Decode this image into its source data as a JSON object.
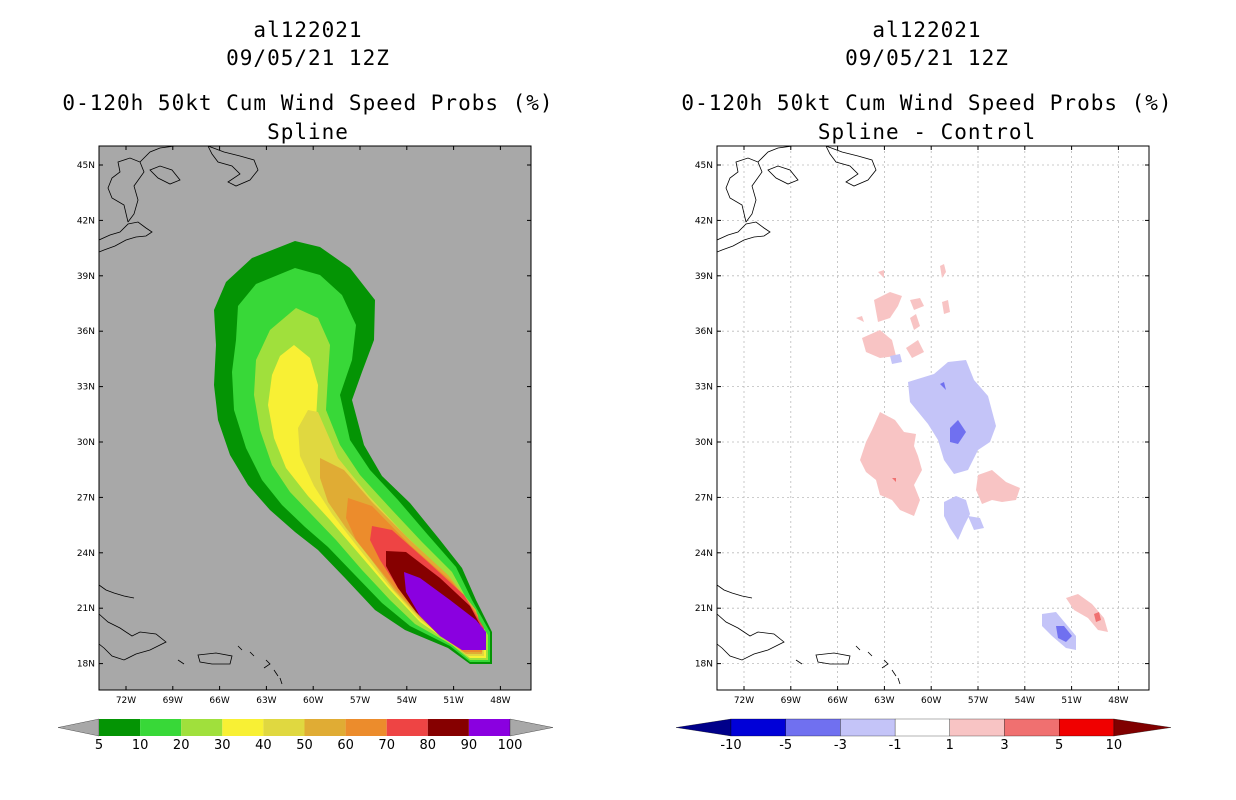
{
  "panels": [
    {
      "storm_id": "al122021",
      "datetime": "09/05/21 12Z",
      "product": "0-120h 50kt Cum Wind Speed Probs (%)",
      "subtitle": "Spline",
      "background_color": "#a8a8a8",
      "colorbar": {
        "labels": [
          "5",
          "10",
          "20",
          "30",
          "40",
          "50",
          "60",
          "70",
          "80",
          "90",
          "100"
        ],
        "colors": [
          "#049404",
          "#38d838",
          "#a0e03c",
          "#f8f034",
          "#e0d840",
          "#e0ac34",
          "#ec8c2c",
          "#ee4444",
          "#860000",
          "#8a00e0"
        ],
        "end_color": "#a8a8a8"
      }
    },
    {
      "storm_id": "al122021",
      "datetime": "09/05/21 12Z",
      "product": "0-120h 50kt Cum Wind Speed Probs (%)",
      "subtitle": "Spline - Control",
      "background_color": "#ffffff",
      "colorbar": {
        "labels": [
          "-10",
          "-5",
          "-3",
          "-1",
          "1",
          "3",
          "5",
          "10"
        ],
        "colors": [
          "#0000d8",
          "#7070f0",
          "#c4c4f8",
          "#ffffff",
          "#f8c4c4",
          "#f07070",
          "#f00000"
        ],
        "low_end_color": "#00008a",
        "high_end_color": "#800000"
      }
    }
  ],
  "axes": {
    "lon_labels": [
      "72W",
      "69W",
      "66W",
      "63W",
      "60W",
      "57W",
      "54W",
      "51W",
      "48W"
    ],
    "lat_labels": [
      "45N",
      "42N",
      "39N",
      "36N",
      "33N",
      "30N",
      "27N",
      "24N",
      "21N",
      "18N"
    ],
    "lon_range": [
      -74,
      -46
    ],
    "lat_range": [
      16.5,
      46
    ]
  },
  "map_data": {
    "probability_bands": [
      {
        "level": 5,
        "color": "#049404"
      },
      {
        "level": 10,
        "color": "#38d838"
      },
      {
        "level": 20,
        "color": "#a0e03c"
      },
      {
        "level": 30,
        "color": "#f8f034"
      },
      {
        "level": 40,
        "color": "#e0d840"
      },
      {
        "level": 50,
        "color": "#e0ac34"
      },
      {
        "level": 60,
        "color": "#ec8c2c"
      },
      {
        "level": 70,
        "color": "#ee4444"
      },
      {
        "level": 80,
        "color": "#860000"
      },
      {
        "level": 90,
        "color": "#8a00e0"
      }
    ],
    "difference_areas": [
      {
        "sign": "positive",
        "color": "#f8c4c4"
      },
      {
        "sign": "negative",
        "color": "#c4c4f8"
      }
    ]
  }
}
